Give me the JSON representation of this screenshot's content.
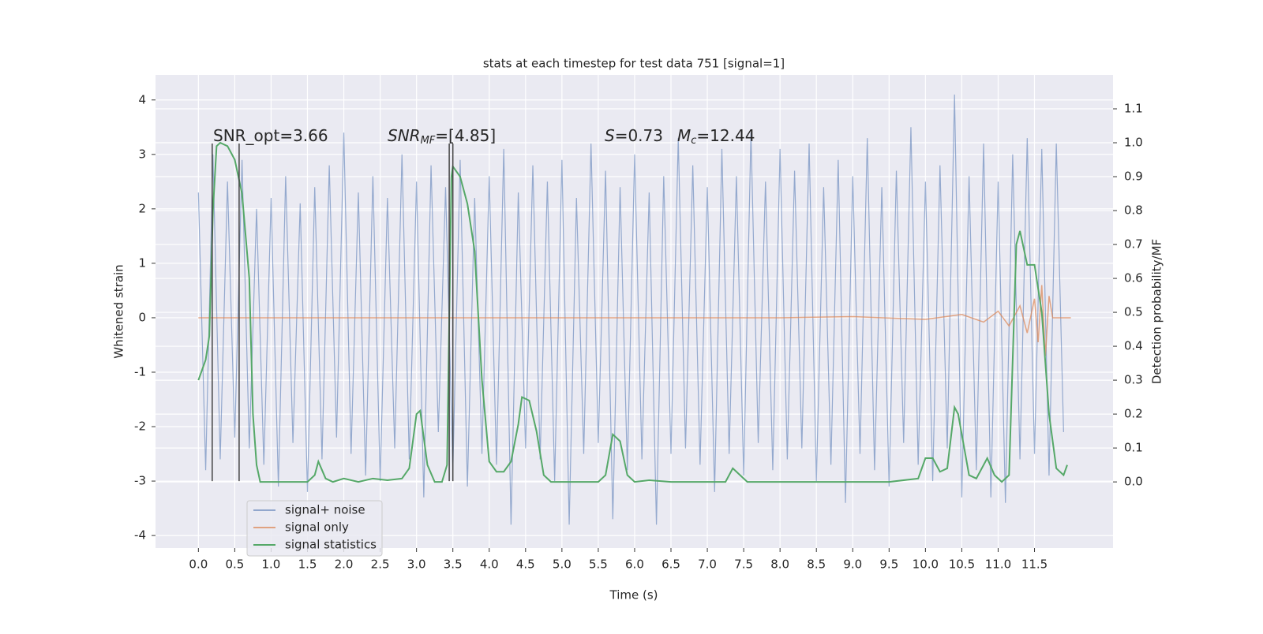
{
  "chart_data": {
    "type": "line",
    "title": "stats at each timestep for test data 751 [signal=1]",
    "xlabel": "Time (s)",
    "ylabel": "Whitened strain",
    "y2label": "Detection probability/MF",
    "xlim": [
      -0.59,
      12.58
    ],
    "ylim": [
      -4.23,
      4.46
    ],
    "y2lim": [
      -0.195,
      1.2
    ],
    "xticks": [
      {
        "value": 0,
        "label": "0.0"
      },
      {
        "value": 0.5,
        "label": "0.5"
      },
      {
        "value": 1,
        "label": "1.0"
      },
      {
        "value": 1.5,
        "label": "1.5"
      },
      {
        "value": 2,
        "label": "2.0"
      },
      {
        "value": 2.5,
        "label": "2.5"
      },
      {
        "value": 3,
        "label": "3.0"
      },
      {
        "value": 3.5,
        "label": "3.5"
      },
      {
        "value": 4,
        "label": "4.0"
      },
      {
        "value": 4.5,
        "label": "4.5"
      },
      {
        "value": 5,
        "label": "5.0"
      },
      {
        "value": 5.5,
        "label": "5.5"
      },
      {
        "value": 6,
        "label": "6.0"
      },
      {
        "value": 6.5,
        "label": "6.5"
      },
      {
        "value": 7,
        "label": "7.0"
      },
      {
        "value": 7.5,
        "label": "7.5"
      },
      {
        "value": 8,
        "label": "8.0"
      },
      {
        "value": 8.5,
        "label": "8.5"
      },
      {
        "value": 9,
        "label": "9.0"
      },
      {
        "value": 9.5,
        "label": "9.5"
      },
      {
        "value": 10,
        "label": "10.0"
      },
      {
        "value": 10.5,
        "label": "10.5"
      },
      {
        "value": 11,
        "label": "11.0"
      },
      {
        "value": 11.5,
        "label": "11.5"
      }
    ],
    "yticks": [
      -4,
      -3,
      -2,
      -1,
      0,
      1,
      2,
      3,
      4
    ],
    "y2ticks": [
      {
        "value": 0,
        "label": "0.0"
      },
      {
        "value": 0.1,
        "label": "0.1"
      },
      {
        "value": 0.2,
        "label": "0.2"
      },
      {
        "value": 0.3,
        "label": "0.3"
      },
      {
        "value": 0.4,
        "label": "0.4"
      },
      {
        "value": 0.5,
        "label": "0.5"
      },
      {
        "value": 0.6,
        "label": "0.6"
      },
      {
        "value": 0.7,
        "label": "0.7"
      },
      {
        "value": 0.8,
        "label": "0.8"
      },
      {
        "value": 0.9,
        "label": "0.9"
      },
      {
        "value": 1,
        "label": "1.0"
      },
      {
        "value": 1.1,
        "label": "1.1"
      }
    ],
    "grid": true,
    "series": [
      {
        "name": "signal+ noise",
        "color": "#4c72b0",
        "x": [
          0,
          0.1,
          0.2,
          0.3,
          0.4,
          0.5,
          0.6,
          0.7,
          0.8,
          0.9,
          1,
          1.1,
          1.2,
          1.3,
          1.4,
          1.5,
          1.6,
          1.7,
          1.8,
          1.9,
          2,
          2.1,
          2.2,
          2.3,
          2.4,
          2.5,
          2.6,
          2.7,
          2.8,
          2.9,
          3,
          3.1,
          3.2,
          3.3,
          3.4,
          3.5,
          3.6,
          3.7,
          3.8,
          3.9,
          4,
          4.1,
          4.2,
          4.3,
          4.4,
          4.5,
          4.6,
          4.7,
          4.8,
          4.9,
          5,
          5.1,
          5.2,
          5.3,
          5.4,
          5.5,
          5.6,
          5.7,
          5.8,
          5.9,
          6,
          6.1,
          6.2,
          6.3,
          6.4,
          6.5,
          6.6,
          6.7,
          6.8,
          6.9,
          7,
          7.1,
          7.2,
          7.3,
          7.4,
          7.5,
          7.6,
          7.7,
          7.8,
          7.9,
          8,
          8.1,
          8.2,
          8.3,
          8.4,
          8.5,
          8.6,
          8.7,
          8.8,
          8.9,
          9,
          9.1,
          9.2,
          9.3,
          9.4,
          9.5,
          9.6,
          9.7,
          9.8,
          9.9,
          10,
          10.1,
          10.2,
          10.3,
          10.4,
          10.5,
          10.6,
          10.7,
          10.8,
          10.9,
          11,
          11.1,
          11.2,
          11.3,
          11.4,
          11.5,
          11.6,
          11.7,
          11.8,
          11.9
        ],
        "values": [
          2.3,
          -2.8,
          3.0,
          -2.6,
          2.5,
          -2.2,
          2.9,
          -2.4,
          2.0,
          -2.7,
          2.2,
          -3.1,
          2.6,
          -2.3,
          2.1,
          -3.2,
          2.4,
          -2.6,
          2.8,
          -2.2,
          3.4,
          -2.5,
          2.3,
          -2.9,
          2.6,
          -3.0,
          2.2,
          -2.4,
          3.0,
          -2.6,
          2.5,
          -3.3,
          2.8,
          -2.1,
          2.4,
          -2.8,
          2.9,
          -3.1,
          2.2,
          -2.5,
          2.6,
          -2.7,
          3.1,
          -3.8,
          2.3,
          -2.4,
          2.8,
          -2.6,
          2.5,
          -3.0,
          2.9,
          -3.8,
          2.2,
          -2.5,
          3.2,
          -2.3,
          2.7,
          -3.7,
          2.4,
          -2.8,
          3.0,
          -2.6,
          2.3,
          -3.8,
          2.6,
          -2.5,
          3.3,
          -2.4,
          2.8,
          -2.7,
          2.4,
          -3.2,
          3.1,
          -2.5,
          2.6,
          -2.9,
          3.4,
          -2.3,
          2.5,
          -2.8,
          3.1,
          -2.6,
          2.7,
          -2.4,
          3.2,
          -3.0,
          2.4,
          -2.7,
          2.9,
          -3.4,
          2.6,
          -2.5,
          3.3,
          -2.8,
          2.4,
          -3.1,
          2.7,
          -2.3,
          3.5,
          -2.7,
          2.5,
          -3.0,
          2.8,
          -2.4,
          4.1,
          -3.3,
          2.6,
          -2.8,
          3.2,
          -3.3,
          2.5,
          -3.4,
          3.0,
          -2.6,
          3.3,
          -2.5,
          3.1,
          -2.9,
          3.2,
          -2.1
        ]
      },
      {
        "name": "signal only",
        "color": "#dd8452",
        "x": [
          0,
          2,
          4,
          6,
          8,
          9,
          10,
          10.5,
          10.8,
          11,
          11.15,
          11.3,
          11.4,
          11.5,
          11.55,
          11.6,
          11.65,
          11.7,
          11.75,
          12
        ],
        "values": [
          0,
          0,
          0,
          0,
          0,
          0.02,
          -0.03,
          0.06,
          -0.08,
          0.12,
          -0.15,
          0.22,
          -0.28,
          0.35,
          -0.45,
          0.6,
          -0.7,
          0.4,
          0,
          0
        ]
      },
      {
        "name": "signal statistics",
        "color": "#55a868",
        "axis": "y2",
        "x": [
          0,
          0.1,
          0.15,
          0.2,
          0.25,
          0.3,
          0.4,
          0.5,
          0.6,
          0.7,
          0.75,
          0.8,
          0.85,
          1,
          1.5,
          1.6,
          1.65,
          1.75,
          1.85,
          2,
          2.2,
          2.4,
          2.6,
          2.8,
          2.9,
          3,
          3.05,
          3.15,
          3.25,
          3.35,
          3.42,
          3.48,
          3.5,
          3.6,
          3.7,
          3.8,
          3.9,
          4,
          4.1,
          4.2,
          4.3,
          4.4,
          4.45,
          4.55,
          4.65,
          4.75,
          4.85,
          5,
          5.5,
          5.6,
          5.7,
          5.8,
          5.9,
          6,
          6.2,
          6.5,
          7,
          7.25,
          7.35,
          7.45,
          7.55,
          8,
          9.5,
          9.9,
          10,
          10.1,
          10.2,
          10.3,
          10.4,
          10.45,
          10.6,
          10.7,
          10.85,
          10.95,
          11.05,
          11.15,
          11.25,
          11.3,
          11.4,
          11.5,
          11.6,
          11.7,
          11.8,
          11.9,
          11.95
        ],
        "values": [
          0.3,
          0.36,
          0.43,
          0.8,
          0.99,
          1.0,
          0.99,
          0.95,
          0.85,
          0.6,
          0.2,
          0.05,
          0,
          0,
          0,
          0.02,
          0.06,
          0.01,
          0,
          0.01,
          0,
          0.01,
          0.005,
          0.01,
          0.04,
          0.2,
          0.21,
          0.05,
          0,
          0,
          0.05,
          0.9,
          0.93,
          0.9,
          0.82,
          0.68,
          0.3,
          0.06,
          0.03,
          0.03,
          0.06,
          0.17,
          0.25,
          0.24,
          0.15,
          0.02,
          0,
          0,
          0,
          0.02,
          0.14,
          0.12,
          0.02,
          0,
          0.005,
          0,
          0,
          0,
          0.04,
          0.02,
          0,
          0,
          0,
          0.01,
          0.07,
          0.07,
          0.03,
          0.04,
          0.22,
          0.2,
          0.02,
          0.01,
          0.07,
          0.02,
          0,
          0.02,
          0.7,
          0.74,
          0.64,
          0.64,
          0.5,
          0.2,
          0.04,
          0.02,
          0.05
        ]
      }
    ],
    "vlines": {
      "x": [
        0.19,
        0.56,
        3.45,
        3.5
      ],
      "ymin": -3,
      "ymax": 3.2,
      "color": "#444444"
    },
    "annotations": [
      {
        "base": "SNR_opt=3.66"
      },
      {
        "base": "SNR",
        "sub": "MF",
        "rest": "=[4.85]"
      },
      {
        "base": "S",
        "rest": "=0.73"
      },
      {
        "base": "M",
        "sub": "c",
        "rest": "=12.44"
      }
    ],
    "legend": "lower left"
  }
}
